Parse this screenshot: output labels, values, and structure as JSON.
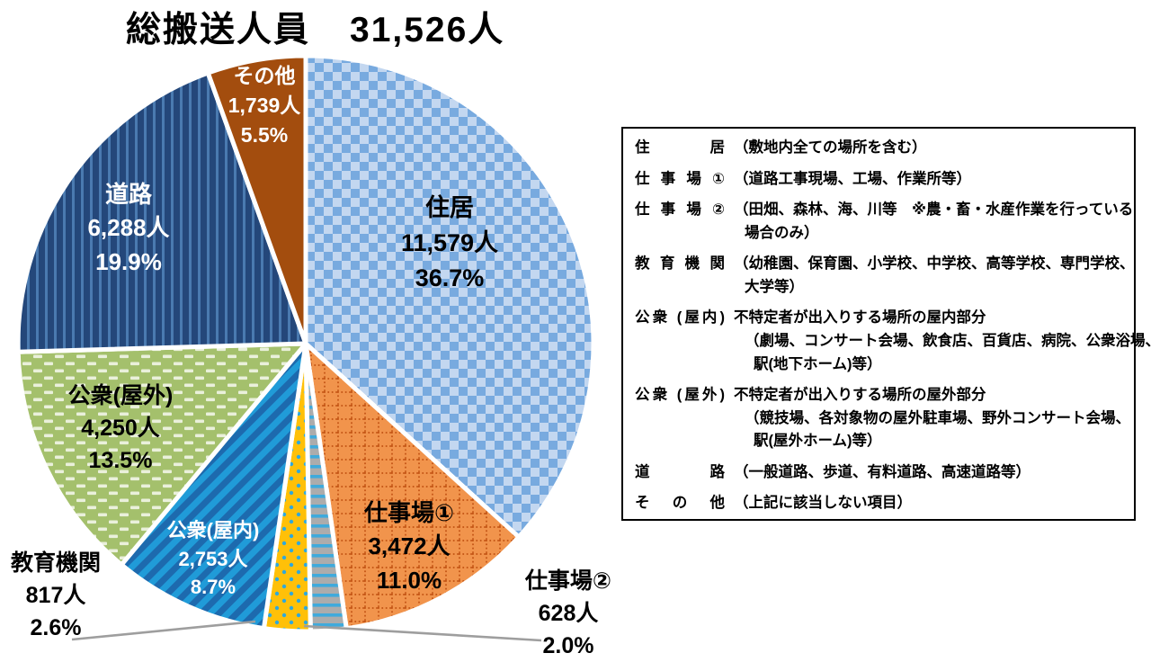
{
  "title": {
    "text": "総搬送人員",
    "value": "31,526人"
  },
  "chart_data": {
    "type": "pie",
    "title": "総搬送人員　31,526人",
    "total_label": "総搬送人員",
    "total_value": 31526,
    "total_value_label": "31,526人",
    "unit": "人",
    "start_angle_deg": 0,
    "direction": "clockwise",
    "slices": [
      {
        "name": "住居",
        "value": 11579,
        "value_label": "11,579人",
        "percent": 36.7,
        "percent_label": "36.7%",
        "pattern": "checker",
        "base_color": "#C3D7F0",
        "accent_color": "#78AADF",
        "text_color": "#000000",
        "label_position": "inside"
      },
      {
        "name": "仕事場①",
        "value": 3472,
        "value_label": "3,472人",
        "percent": 11.0,
        "percent_label": "11.0%",
        "pattern": "dotted-grid",
        "base_color": "#F1944C",
        "accent_color": "#C25313",
        "text_color": "#000000",
        "label_position": "inside"
      },
      {
        "name": "仕事場②",
        "value": 628,
        "value_label": "628人",
        "percent": 2.0,
        "percent_label": "2.0%",
        "pattern": "horizontal-stripes",
        "base_color": "#ACACAC",
        "accent_color": "#3FAADC",
        "text_color": "#000000",
        "label_position": "outside-right"
      },
      {
        "name": "教育機関",
        "value": 817,
        "value_label": "817人",
        "percent": 2.6,
        "percent_label": "2.6%",
        "pattern": "dots",
        "base_color": "#FFC008",
        "accent_color": "#2FA8DC",
        "text_color": "#000000",
        "label_position": "outside-left"
      },
      {
        "name": "公衆(屋内)",
        "value": 2753,
        "value_label": "2,753人",
        "percent": 8.7,
        "percent_label": "8.7%",
        "pattern": "diagonal-stripes",
        "base_color": "#1D6AAE",
        "accent_color": "#209BD8",
        "text_color": "#FFFFFF",
        "label_position": "inside"
      },
      {
        "name": "公衆(屋外)",
        "value": 4250,
        "value_label": "4,250人",
        "percent": 13.5,
        "percent_label": "13.5%",
        "pattern": "dashes",
        "base_color": "#A4C06C",
        "accent_color": "#EAF0DB",
        "text_color": "#000000",
        "label_position": "inside"
      },
      {
        "name": "道路",
        "value": 6288,
        "value_label": "6,288人",
        "percent": 19.9,
        "percent_label": "19.9%",
        "pattern": "vertical-stripes",
        "base_color": "#24477A",
        "accent_color": "#4A7AB0",
        "text_color": "#FFFFFF",
        "label_position": "inside"
      },
      {
        "name": "その他",
        "value": 1739,
        "value_label": "1,739人",
        "percent": 5.5,
        "percent_label": "5.5%",
        "pattern": "solid",
        "base_color": "#A34D0E",
        "accent_color": "#A34D0E",
        "text_color": "#FFFFFF",
        "label_position": "inside"
      }
    ]
  },
  "legend_box": {
    "rows": [
      {
        "term": "住居",
        "lines": [
          "（敷地内全ての場所を含む）"
        ]
      },
      {
        "term": "仕事場①",
        "lines": [
          "（道路工事現場、工場、作業所等）"
        ]
      },
      {
        "term": "仕事場②",
        "lines": [
          "（田畑、森林、海、川等　※農・畜・水産作業を行っている",
          "場合のみ）"
        ]
      },
      {
        "term": "教育機関",
        "lines": [
          "（幼稚園、保育園、小学校、中学校、高等学校、専門学校、",
          "大学等）"
        ]
      },
      {
        "term": "公衆 (屋内)",
        "lines": [
          "不特定者が出入りする場所の屋内部分",
          "（劇場、コンサート会場、飲食店、百貨店、病院、公衆浴場、",
          "駅(地下ホーム)等）"
        ]
      },
      {
        "term": "公衆 (屋外)",
        "lines": [
          "不特定者が出入りする場所の屋外部分",
          "（競技場、各対象物の屋外駐車場、野外コンサート会場、",
          "駅(屋外ホーム)等）"
        ]
      },
      {
        "term": "道路",
        "lines": [
          "（一般道路、歩道、有料道路、高速道路等）"
        ]
      },
      {
        "term": "その他",
        "lines": [
          "（上記に該当しない項目）"
        ]
      }
    ]
  },
  "colors": {
    "background": "#FFFFFF",
    "leader_line": "#9E9E9E",
    "slice_gap": "#FFFFFF",
    "legend_border": "#000000",
    "title_color": "#000000"
  }
}
